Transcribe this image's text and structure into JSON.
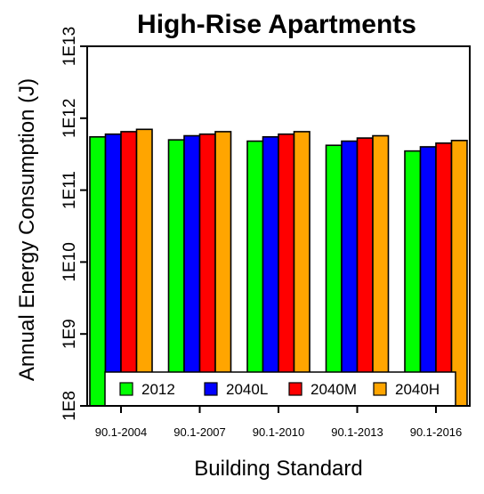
{
  "chart_data": {
    "type": "bar",
    "title": "High-Rise Apartments",
    "xlabel": "Building Standard",
    "ylabel": "Annual Energy Consumption (J)",
    "yscale": "log",
    "ylim": [
      100000000.0,
      10000000000000.0
    ],
    "yticks": [
      "1E8",
      "1E9",
      "1E10",
      "1E11",
      "1E12",
      "1E13"
    ],
    "categories": [
      "90.1-2004",
      "90.1-2007",
      "90.1-2010",
      "90.1-2013",
      "90.1-2016"
    ],
    "series": [
      {
        "name": "2012",
        "color": "#00ff00",
        "values": [
          550000000000.0,
          500000000000.0,
          480000000000.0,
          420000000000.0,
          350000000000.0
        ]
      },
      {
        "name": "2040L",
        "color": "#0000ff",
        "values": [
          600000000000.0,
          570000000000.0,
          550000000000.0,
          480000000000.0,
          400000000000.0
        ]
      },
      {
        "name": "2040M",
        "color": "#ff0000",
        "values": [
          650000000000.0,
          600000000000.0,
          600000000000.0,
          530000000000.0,
          450000000000.0
        ]
      },
      {
        "name": "2040H",
        "color": "#ffa500",
        "values": [
          700000000000.0,
          650000000000.0,
          650000000000.0,
          570000000000.0,
          490000000000.0
        ]
      }
    ],
    "grid": false,
    "legend_position": "bottom"
  }
}
